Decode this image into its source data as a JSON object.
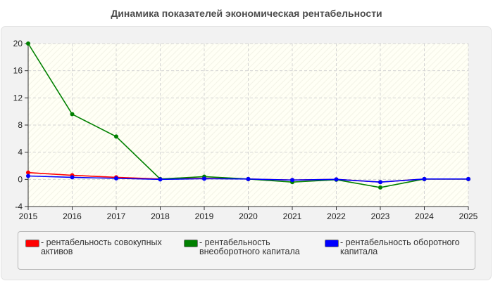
{
  "chart_data": {
    "type": "line",
    "title": "Динамика показателей экономическая рентабельности",
    "x": [
      2015,
      2016,
      2017,
      2018,
      2019,
      2020,
      2021,
      2022,
      2023,
      2024,
      2025
    ],
    "x_ticks": [
      "2015",
      "2016",
      "2017",
      "2018",
      "2019",
      "2020",
      "2021",
      "2022",
      "2023",
      "2024",
      "2025"
    ],
    "y_ticks": [
      "-4",
      "0",
      "4",
      "8",
      "12",
      "16",
      "20"
    ],
    "ylim": [
      -4,
      20
    ],
    "xlabel": "",
    "ylabel": "",
    "grid": true,
    "legend_position": "bottom",
    "series": [
      {
        "name": "- рентабельность совокупных активов",
        "color": "#ff0000",
        "values": [
          1.0,
          0.6,
          0.3,
          0.05,
          0.15,
          0.05,
          -0.1,
          0.0,
          -0.4,
          0.05,
          0.05
        ]
      },
      {
        "name": "- рентабельность внеоборотного капитала",
        "color": "#008000",
        "values": [
          20.0,
          9.6,
          6.3,
          0.05,
          0.4,
          0.05,
          -0.4,
          -0.05,
          -1.2,
          0.05,
          0.05
        ]
      },
      {
        "name": "- рентабельность оборотного капитала",
        "color": "#0000ff",
        "values": [
          0.5,
          0.3,
          0.15,
          0.0,
          0.1,
          0.05,
          -0.1,
          0.0,
          -0.4,
          0.05,
          0.05
        ]
      }
    ]
  }
}
